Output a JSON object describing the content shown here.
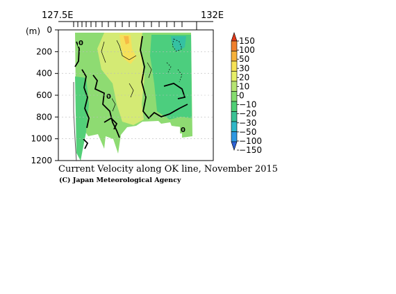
{
  "chart_data": {
    "type": "heatmap",
    "title": "Current Velocity along OK line, November 2015",
    "credit": "(C) Japan Meteorological Agency",
    "x_axis": {
      "range": [
        127.5,
        132.0
      ],
      "tick_labels": [
        "127.5E",
        "132E"
      ]
    },
    "y_axis": {
      "unit_label": "(m)",
      "range": [
        0,
        1200
      ],
      "inverted": true,
      "ticks": [
        0,
        200,
        400,
        600,
        800,
        1000,
        1200
      ]
    },
    "contour_labels": [
      {
        "text": "0",
        "lon": 128.15,
        "depth": 110
      },
      {
        "text": "0",
        "lon": 129.3,
        "depth": 550
      },
      {
        "text": "0",
        "lon": 131.35,
        "depth": 950
      }
    ],
    "colorbar": {
      "labels": [
        "150",
        "100",
        "50",
        "30",
        "20",
        "10",
        "0",
        "−10",
        "−20",
        "−30",
        "−50",
        "−100",
        "−150"
      ],
      "colors": [
        "#e2391a",
        "#f07f2c",
        "#f6b13a",
        "#f7e255",
        "#e6ef68",
        "#b6e472",
        "#85dc6e",
        "#4fcf74",
        "#39c194",
        "#2fb7c8",
        "#2e98e2",
        "#2f62d6"
      ]
    }
  }
}
